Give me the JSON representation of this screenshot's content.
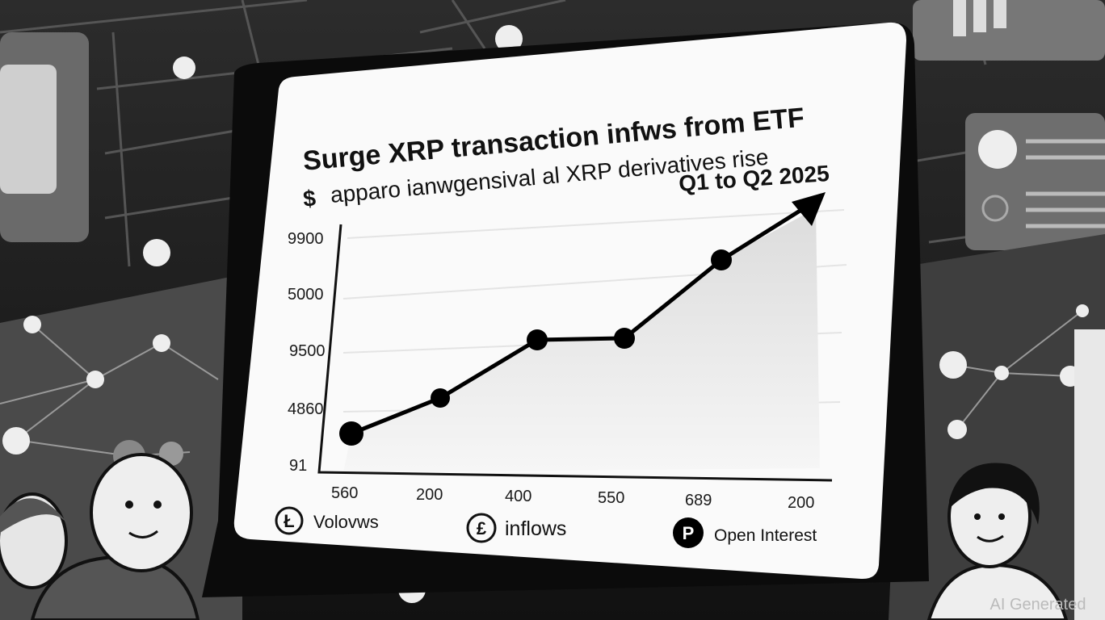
{
  "title": "Surge XRP transaction infws from ETF",
  "currency_symbol": "$",
  "subtitle": "apparo ianwgensival al XRP derivatives rise",
  "period": "Q1 to Q2 2025",
  "y_axis_labels": [
    "9900",
    "5000",
    "9500",
    "4860",
    "91"
  ],
  "x_axis_labels": [
    "560",
    "200",
    "400",
    "550",
    "689",
    "200"
  ],
  "legend": [
    {
      "icon": "Ł",
      "label": "Volovws"
    },
    {
      "icon": "£",
      "label": "inflows"
    },
    {
      "icon": "P",
      "label": "Open Interest"
    }
  ],
  "watermark": "AI Generated"
}
